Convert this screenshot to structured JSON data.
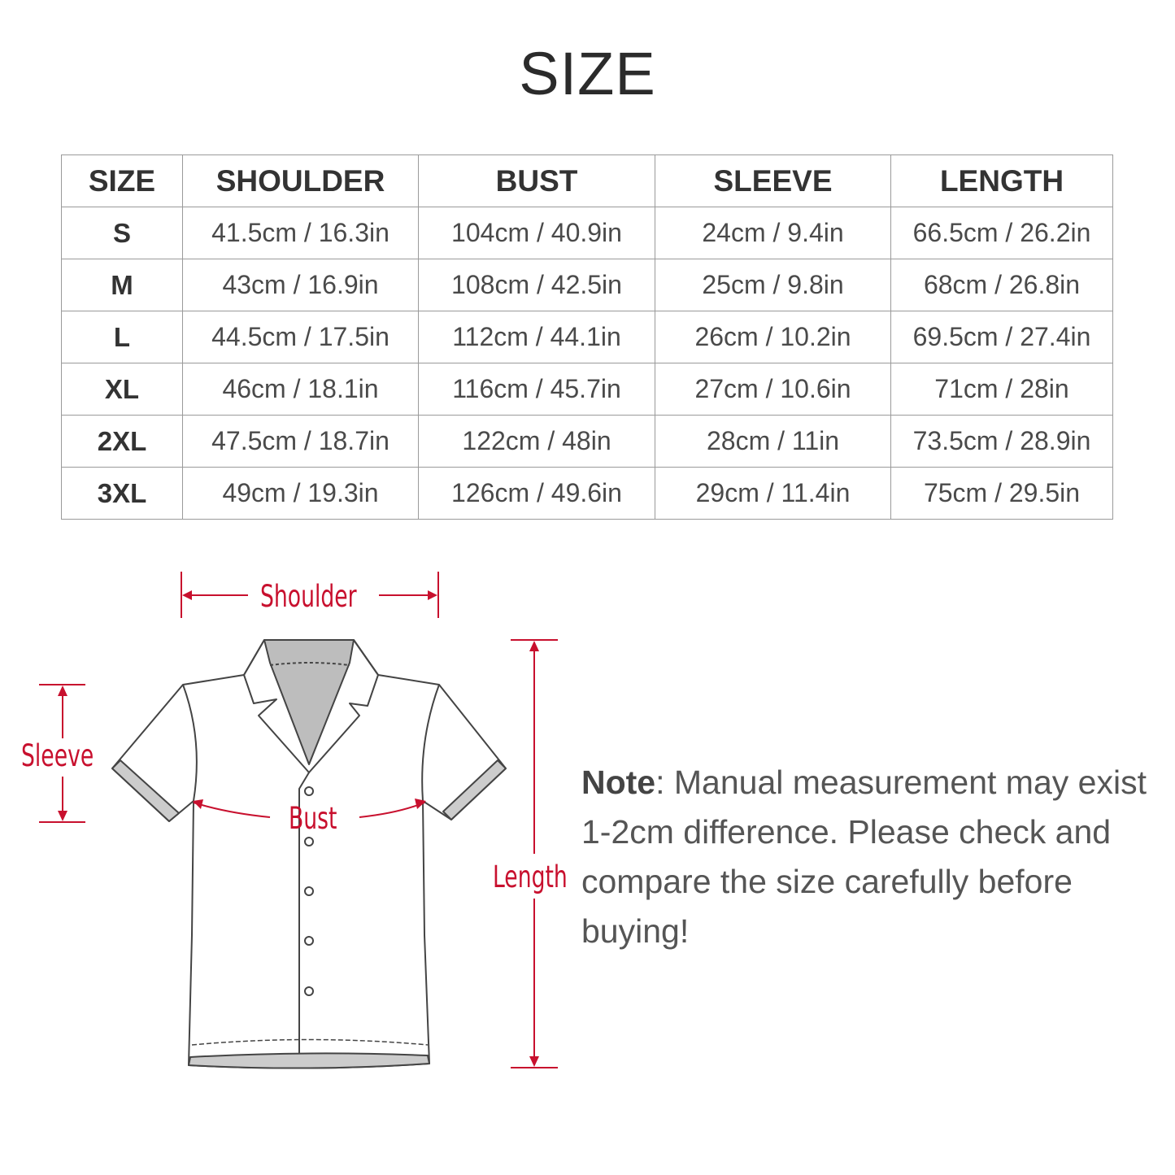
{
  "title": "SIZE",
  "table": {
    "headers": [
      "SIZE",
      "SHOULDER",
      "BUST",
      "SLEEVE",
      "LENGTH"
    ],
    "rows": [
      [
        "S",
        "41.5cm / 16.3in",
        "104cm / 40.9in",
        "24cm / 9.4in",
        "66.5cm / 26.2in"
      ],
      [
        "M",
        "43cm / 16.9in",
        "108cm / 42.5in",
        "25cm / 9.8in",
        "68cm / 26.8in"
      ],
      [
        "L",
        "44.5cm / 17.5in",
        "112cm / 44.1in",
        "26cm / 10.2in",
        "69.5cm / 27.4in"
      ],
      [
        "XL",
        "46cm / 18.1in",
        "116cm / 45.7in",
        "27cm / 10.6in",
        "71cm / 28in"
      ],
      [
        "2XL",
        "47.5cm / 18.7in",
        "122cm / 48in",
        "28cm / 11in",
        "73.5cm / 28.9in"
      ],
      [
        "3XL",
        "49cm / 19.3in",
        "126cm / 49.6in",
        "29cm / 11.4in",
        "75cm / 29.5in"
      ]
    ]
  },
  "diagram": {
    "labels": {
      "shoulder": "Shoulder",
      "sleeve": "Sleeve",
      "bust": "Bust",
      "length": "Length"
    },
    "accent_color": "#c8102e"
  },
  "note": {
    "label": "Note",
    "text": ": Manual measurement may exist 1-2cm difference. Please check and compare the size carefully before buying!"
  }
}
